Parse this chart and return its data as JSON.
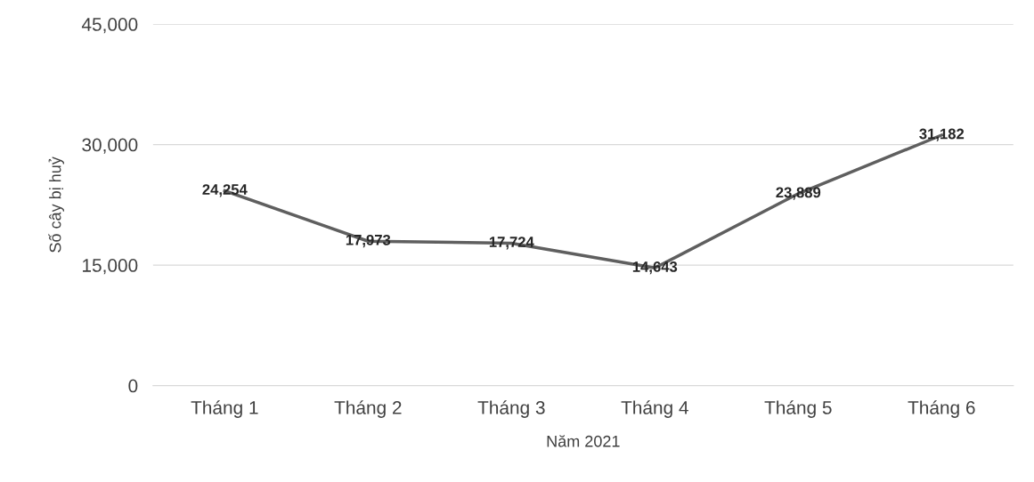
{
  "chart_data": {
    "type": "line",
    "xlabel": "Năm 2021",
    "ylabel": "Số cây bị huỷ",
    "categories": [
      "Tháng 1",
      "Tháng 2",
      "Tháng 3",
      "Tháng 4",
      "Tháng 5",
      "Tháng 6"
    ],
    "series": [
      {
        "color": "#5f5f5f",
        "values": [
          24254,
          17973,
          17724,
          14643,
          23889,
          31182
        ]
      }
    ],
    "value_labels": [
      "24,254",
      "17,973",
      "17,724",
      "14,643",
      "23,889",
      "31,182"
    ],
    "ylim": [
      0,
      45000
    ],
    "yticks": [
      {
        "value": 0,
        "label": "0"
      },
      {
        "value": 15000,
        "label": "15,000"
      },
      {
        "value": 30000,
        "label": "30,000"
      },
      {
        "value": 45000,
        "label": "45,000"
      }
    ],
    "grid": "y",
    "marker": "none",
    "line_style": "solid",
    "legend": false
  }
}
